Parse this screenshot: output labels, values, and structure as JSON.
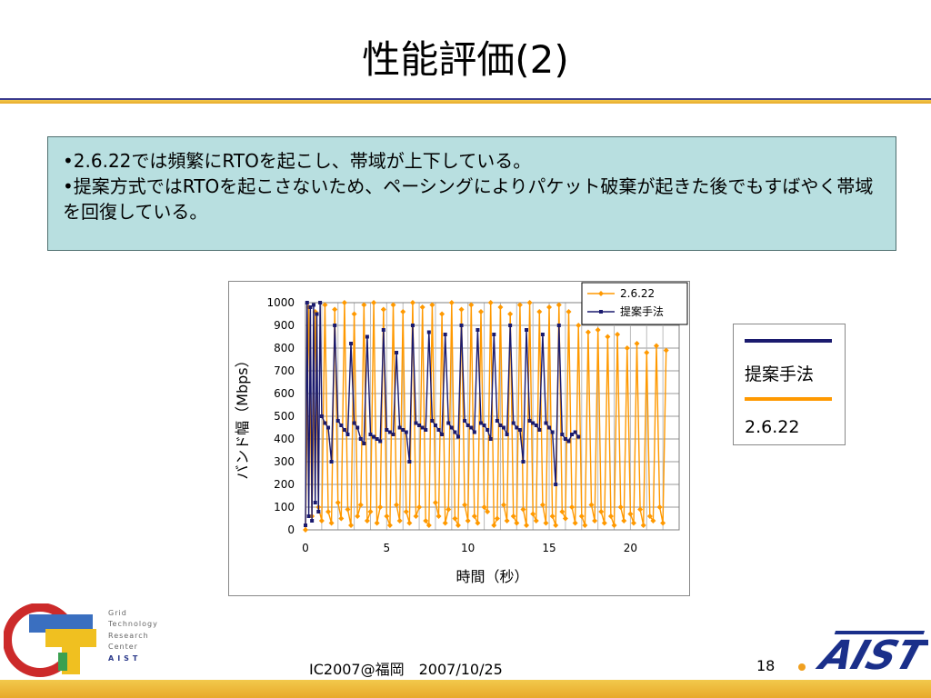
{
  "slide": {
    "title": "性能評価(2)",
    "bullets": [
      "•2.6.22では頻繁にRTOを起こし、帯域が上下している。",
      "•提案方式ではRTOを起こさないため、ペーシングによりパケット破棄が起きた後でもすばやく帯域を回復している。"
    ],
    "footer": "IC2007@福岡　2007/10/25",
    "page_number": "18"
  },
  "logos": {
    "grid_lines": [
      "Grid",
      "Technology",
      "Research",
      "Center"
    ],
    "grid_aist": "AIST",
    "aist_text": "AIST"
  },
  "side_legend": {
    "items": [
      {
        "label": "提案手法",
        "color": "#1a1a6e"
      },
      {
        "label": "2.6.22",
        "color": "#ff9900"
      }
    ]
  },
  "chart_data": {
    "type": "line",
    "title": "",
    "xlabel": "時間（秒）",
    "ylabel": "バンド幅（Mbps）",
    "xlim": [
      0,
      23
    ],
    "ylim": [
      0,
      1000
    ],
    "x_ticks": [
      0,
      5,
      10,
      15,
      20
    ],
    "y_ticks": [
      0,
      100,
      200,
      300,
      400,
      500,
      600,
      700,
      800,
      900,
      1000
    ],
    "grid": true,
    "legend_position": "top-right",
    "series": [
      {
        "name": "2.6.22",
        "color": "#ff9900",
        "marker": "diamond",
        "x": [
          0,
          0.2,
          0.4,
          0.6,
          0.8,
          1.0,
          1.2,
          1.4,
          1.6,
          1.8,
          2.0,
          2.2,
          2.4,
          2.6,
          2.8,
          3.0,
          3.2,
          3.4,
          3.6,
          3.8,
          4.0,
          4.2,
          4.4,
          4.6,
          4.8,
          5.0,
          5.2,
          5.4,
          5.6,
          5.8,
          6.0,
          6.2,
          6.4,
          6.6,
          6.8,
          7.0,
          7.2,
          7.4,
          7.6,
          7.8,
          8.0,
          8.2,
          8.4,
          8.6,
          8.8,
          9.0,
          9.2,
          9.4,
          9.6,
          9.8,
          10.0,
          10.2,
          10.4,
          10.6,
          10.8,
          11.0,
          11.2,
          11.4,
          11.6,
          11.8,
          12.0,
          12.2,
          12.4,
          12.6,
          12.8,
          13.0,
          13.2,
          13.4,
          13.6,
          13.8,
          14.0,
          14.2,
          14.4,
          14.6,
          14.8,
          15.0,
          15.2,
          15.4,
          15.6,
          15.8,
          16.0,
          16.2,
          16.4,
          16.6,
          16.8,
          17.0,
          17.2,
          17.4,
          17.6,
          17.8,
          18.0,
          18.2,
          18.4,
          18.6,
          18.8,
          19.0,
          19.2,
          19.4,
          19.6,
          19.8,
          20.0,
          20.2,
          20.4,
          20.6,
          20.8,
          21.0,
          21.2,
          21.4,
          21.6,
          21.8,
          22.0,
          22.2
        ],
        "values": [
          0,
          980,
          60,
          960,
          100,
          40,
          990,
          80,
          30,
          970,
          120,
          50,
          1000,
          90,
          20,
          950,
          60,
          110,
          990,
          40,
          80,
          1000,
          30,
          100,
          970,
          60,
          20,
          990,
          110,
          40,
          960,
          80,
          30,
          1000,
          60,
          100,
          980,
          40,
          20,
          990,
          120,
          60,
          950,
          30,
          90,
          1000,
          50,
          20,
          970,
          110,
          40,
          990,
          60,
          30,
          960,
          100,
          80,
          1000,
          20,
          50,
          980,
          110,
          40,
          950,
          60,
          30,
          990,
          90,
          20,
          1000,
          70,
          40,
          960,
          110,
          30,
          980,
          60,
          20,
          990,
          80,
          50,
          960,
          100,
          30,
          900,
          60,
          20,
          870,
          110,
          40,
          880,
          80,
          30,
          850,
          60,
          20,
          860,
          100,
          40,
          800,
          70,
          30,
          820,
          90,
          20,
          780,
          60,
          40,
          810,
          100,
          30,
          790
        ]
      },
      {
        "name": "提案手法",
        "color": "#1a1a6e",
        "marker": "square",
        "x": [
          0,
          0.1,
          0.2,
          0.3,
          0.4,
          0.5,
          0.6,
          0.7,
          0.8,
          0.9,
          1.0,
          1.2,
          1.4,
          1.6,
          1.8,
          2.0,
          2.2,
          2.4,
          2.6,
          2.8,
          3.0,
          3.2,
          3.4,
          3.6,
          3.8,
          4.0,
          4.2,
          4.4,
          4.6,
          4.8,
          5.0,
          5.2,
          5.4,
          5.6,
          5.8,
          6.0,
          6.2,
          6.4,
          6.6,
          6.8,
          7.0,
          7.2,
          7.4,
          7.6,
          7.8,
          8.0,
          8.2,
          8.4,
          8.6,
          8.8,
          9.0,
          9.2,
          9.4,
          9.6,
          9.8,
          10.0,
          10.2,
          10.4,
          10.6,
          10.8,
          11.0,
          11.2,
          11.4,
          11.6,
          11.8,
          12.0,
          12.2,
          12.4,
          12.6,
          12.8,
          13.0,
          13.2,
          13.4,
          13.6,
          13.8,
          14.0,
          14.2,
          14.4,
          14.6,
          14.8,
          15.0,
          15.2,
          15.4,
          15.6,
          15.8,
          16.0,
          16.2,
          16.4,
          16.6,
          16.8
        ],
        "values": [
          20,
          1000,
          60,
          980,
          40,
          990,
          120,
          950,
          80,
          1000,
          500,
          470,
          450,
          300,
          900,
          480,
          460,
          440,
          420,
          820,
          470,
          450,
          400,
          380,
          850,
          420,
          410,
          400,
          390,
          880,
          440,
          430,
          420,
          780,
          450,
          440,
          430,
          300,
          900,
          470,
          460,
          450,
          440,
          870,
          480,
          460,
          440,
          420,
          860,
          470,
          450,
          430,
          410,
          900,
          480,
          460,
          450,
          430,
          880,
          470,
          460,
          440,
          400,
          860,
          480,
          460,
          450,
          420,
          900,
          470,
          450,
          440,
          300,
          880,
          480,
          470,
          460,
          440,
          860,
          470,
          450,
          430,
          200,
          900,
          420,
          400,
          390,
          420,
          430,
          410
        ]
      }
    ]
  }
}
